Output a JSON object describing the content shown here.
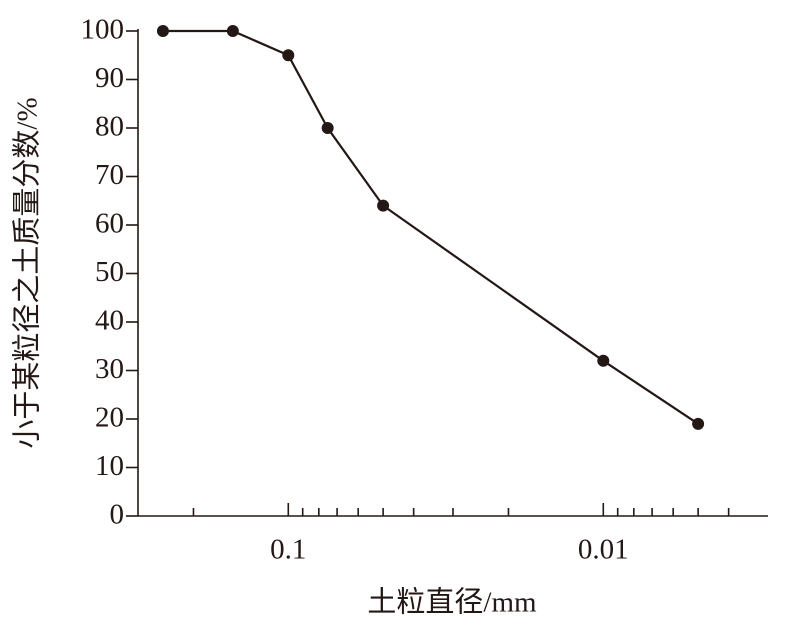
{
  "chart_data": {
    "type": "line",
    "x_label": "土粒直径/mm",
    "y_label": "小于某粒径之土质量分数/%",
    "x": [
      0.25,
      0.15,
      0.1,
      0.075,
      0.05,
      0.01,
      0.005
    ],
    "series": [
      {
        "color": "#231815",
        "values": [
          100,
          100,
          95,
          80,
          64,
          32,
          19
        ]
      }
    ],
    "x_log": true,
    "xlim": [
      0.3,
      0.003
    ],
    "xticks": [
      0.1,
      0.01
    ],
    "xminor_ticks": [
      0.2,
      0.09,
      0.08,
      0.07,
      0.06,
      0.05,
      0.04,
      0.03,
      0.02,
      0.009,
      0.008,
      0.007,
      0.006,
      0.005,
      0.004
    ],
    "ylim": [
      0,
      100
    ],
    "yticks": [
      0,
      10,
      20,
      30,
      40,
      50,
      60,
      70,
      80,
      90,
      100
    ]
  }
}
